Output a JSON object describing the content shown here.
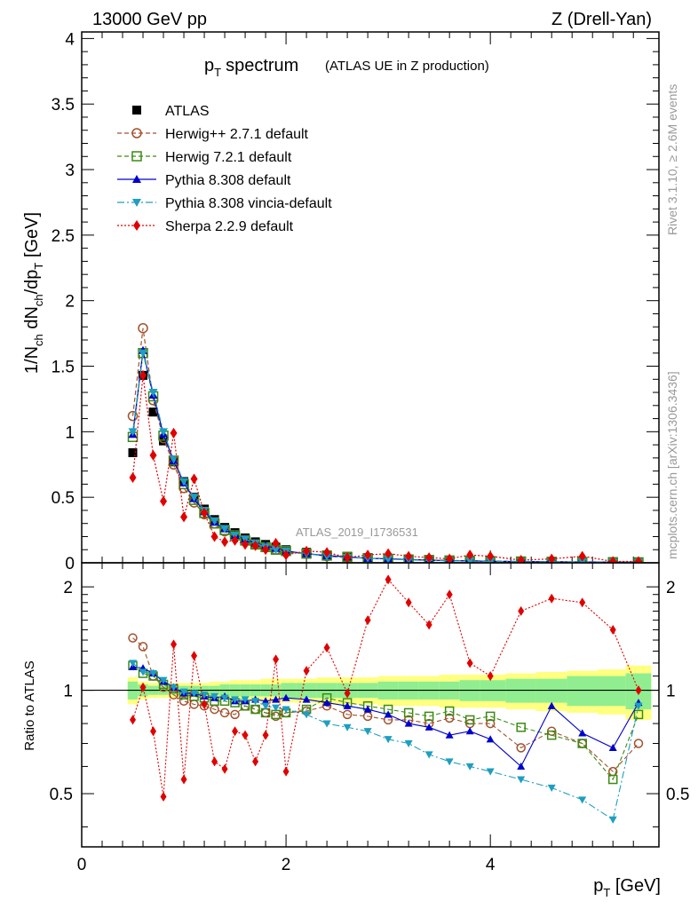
{
  "header": {
    "left": "13000 GeV pp",
    "right": "Z (Drell-Yan)"
  },
  "side_labels": {
    "right_top": "Rivet 3.1.10, ≥ 2.6M events",
    "right_bottom": "mcplots.cern.ch [arXiv:1306.3436]"
  },
  "watermark": "ATLAS_2019_I1736531",
  "colors": {
    "atlas": "#000000",
    "herwigpp": "#a0522d",
    "herwig7": "#3c8a14",
    "pythia": "#0000cc",
    "vincia": "#1e9ec0",
    "sherpa": "#e00000",
    "band_inner": "#90ee90",
    "band_outer": "#ffff80"
  },
  "chart_data": [
    {
      "type": "scatter",
      "panel": "main",
      "title_main": "p",
      "title_sub": "T",
      "title_word": "spectrum",
      "title_extra": "(ATLAS UE in Z production)",
      "ylabel": "1/N_ch dN_ch/dp_T [GeV]",
      "xlim": [
        0,
        5.65
      ],
      "ylim": [
        0,
        4.05
      ],
      "yticks": [
        0,
        0.5,
        1,
        1.5,
        2,
        2.5,
        3,
        3.5,
        4
      ],
      "ytick_labels": [
        "0",
        "0.5",
        "1",
        "1.5",
        "2",
        "2.5",
        "3",
        "3.5",
        "4"
      ],
      "legend": [
        "ATLAS",
        "Herwig++ 2.7.1 default",
        "Herwig 7.2.1 default",
        "Pythia 8.308 default",
        "Pythia 8.308 vincia-default",
        "Sherpa 2.2.9 default"
      ],
      "x": [
        0.5,
        0.6,
        0.7,
        0.8,
        0.9,
        1.0,
        1.1,
        1.2,
        1.3,
        1.4,
        1.5,
        1.6,
        1.7,
        1.8,
        1.9,
        2.0,
        2.2,
        2.4,
        2.6,
        2.8,
        3.0,
        3.2,
        3.4,
        3.6,
        3.8,
        4.0,
        4.3,
        4.6,
        4.9,
        5.2,
        5.45
      ],
      "series": [
        {
          "name": "ATLAS",
          "values": [
            0.84,
            1.43,
            1.15,
            0.93,
            0.77,
            0.62,
            0.5,
            0.41,
            0.33,
            0.27,
            0.23,
            0.19,
            0.16,
            0.14,
            0.12,
            0.1,
            0.08,
            0.06,
            0.05,
            0.04,
            0.035,
            0.03,
            0.025,
            0.02,
            0.018,
            0.015,
            0.012,
            0.01,
            0.008,
            0.006,
            0.005
          ]
        },
        {
          "name": "Herwig++ 2.7.1 default",
          "values": [
            1.12,
            1.79,
            1.24,
            0.95,
            0.75,
            0.57,
            0.46,
            0.37,
            0.3,
            0.24,
            0.2,
            0.17,
            0.14,
            0.12,
            0.1,
            0.08,
            0.07,
            0.05,
            0.04,
            0.035,
            0.03,
            0.025,
            0.02,
            0.017,
            0.015,
            0.012,
            0.01,
            0.008,
            0.006,
            0.005,
            0.004
          ]
        },
        {
          "name": "Herwig 7.2.1 default",
          "values": [
            0.96,
            1.6,
            1.27,
            0.97,
            0.78,
            0.6,
            0.48,
            0.38,
            0.3,
            0.25,
            0.21,
            0.17,
            0.14,
            0.12,
            0.1,
            0.09,
            0.07,
            0.055,
            0.045,
            0.035,
            0.03,
            0.025,
            0.021,
            0.018,
            0.016,
            0.013,
            0.01,
            0.008,
            0.006,
            0.005,
            0.004
          ]
        },
        {
          "name": "Pythia 8.308 default",
          "values": [
            0.98,
            1.62,
            1.28,
            0.98,
            0.78,
            0.61,
            0.49,
            0.39,
            0.31,
            0.26,
            0.21,
            0.18,
            0.15,
            0.13,
            0.11,
            0.09,
            0.07,
            0.055,
            0.045,
            0.035,
            0.03,
            0.025,
            0.02,
            0.016,
            0.014,
            0.011,
            0.009,
            0.008,
            0.006,
            0.005,
            0.004
          ]
        },
        {
          "name": "Pythia 8.308 vincia-default",
          "values": [
            1.0,
            1.6,
            1.3,
            1.0,
            0.79,
            0.62,
            0.5,
            0.4,
            0.32,
            0.26,
            0.21,
            0.18,
            0.15,
            0.12,
            0.1,
            0.09,
            0.07,
            0.05,
            0.04,
            0.035,
            0.028,
            0.022,
            0.018,
            0.015,
            0.013,
            0.01,
            0.008,
            0.007,
            0.005,
            0.004,
            0.004
          ]
        },
        {
          "name": "Sherpa 2.2.9 default",
          "values": [
            0.65,
            1.43,
            0.82,
            0.47,
            0.99,
            0.35,
            0.64,
            0.38,
            0.2,
            0.16,
            0.17,
            0.14,
            0.13,
            0.1,
            0.15,
            0.06,
            0.09,
            0.08,
            0.04,
            0.06,
            0.07,
            0.05,
            0.04,
            0.03,
            0.06,
            0.05,
            0.02,
            0.03,
            0.05,
            0.01,
            0.01
          ]
        }
      ]
    },
    {
      "type": "scatter",
      "panel": "ratio",
      "ylabel": "Ratio to ATLAS",
      "xlabel": "p_T [GeV]",
      "xlim": [
        0,
        5.65
      ],
      "ylim": [
        0.35,
        2.35
      ],
      "xticks": [
        0,
        2,
        4
      ],
      "xtick_labels": [
        "0",
        "2",
        "4"
      ],
      "yticks": [
        0.5,
        1,
        2
      ],
      "ytick_labels": [
        "0.5",
        "1",
        "2"
      ],
      "reference": 1.0,
      "x": [
        0.5,
        0.6,
        0.7,
        0.8,
        0.9,
        1.0,
        1.1,
        1.2,
        1.3,
        1.4,
        1.5,
        1.6,
        1.7,
        1.8,
        1.9,
        2.0,
        2.2,
        2.4,
        2.6,
        2.8,
        3.0,
        3.2,
        3.4,
        3.6,
        3.8,
        4.0,
        4.3,
        4.6,
        4.9,
        5.2,
        5.45
      ],
      "band_inner": [
        0.06,
        0.04,
        0.03,
        0.03,
        0.03,
        0.03,
        0.03,
        0.03,
        0.03,
        0.04,
        0.04,
        0.04,
        0.04,
        0.04,
        0.04,
        0.05,
        0.05,
        0.05,
        0.05,
        0.05,
        0.06,
        0.06,
        0.06,
        0.06,
        0.07,
        0.07,
        0.08,
        0.08,
        0.1,
        0.1,
        0.12
      ],
      "band_outer": [
        0.09,
        0.06,
        0.05,
        0.05,
        0.05,
        0.05,
        0.05,
        0.05,
        0.06,
        0.06,
        0.07,
        0.07,
        0.07,
        0.08,
        0.08,
        0.08,
        0.08,
        0.09,
        0.09,
        0.09,
        0.1,
        0.1,
        0.1,
        0.11,
        0.11,
        0.11,
        0.12,
        0.13,
        0.14,
        0.15,
        0.18
      ],
      "series": [
        {
          "name": "Herwig++ 2.7.1 default",
          "values": [
            1.42,
            1.34,
            1.1,
            1.02,
            0.97,
            0.93,
            0.91,
            0.9,
            0.88,
            0.86,
            0.85,
            0.9,
            0.88,
            0.86,
            0.84,
            0.86,
            0.87,
            0.9,
            0.85,
            0.84,
            0.82,
            0.82,
            0.8,
            0.83,
            0.8,
            0.8,
            0.68,
            0.76,
            0.7,
            0.58,
            0.7
          ]
        },
        {
          "name": "Herwig 7.2.1 default",
          "values": [
            1.18,
            1.12,
            1.1,
            1.04,
            1.01,
            0.97,
            0.96,
            0.95,
            0.93,
            0.93,
            0.92,
            0.9,
            0.88,
            0.86,
            0.85,
            0.86,
            0.88,
            0.95,
            0.92,
            0.9,
            0.88,
            0.86,
            0.84,
            0.87,
            0.82,
            0.84,
            0.78,
            0.74,
            0.7,
            0.55,
            0.85
          ]
        },
        {
          "name": "Pythia 8.308 default",
          "values": [
            1.17,
            1.16,
            1.12,
            1.06,
            1.02,
            0.98,
            0.98,
            0.96,
            0.95,
            0.96,
            0.93,
            0.93,
            0.94,
            0.93,
            0.94,
            0.95,
            0.94,
            0.92,
            0.9,
            0.88,
            0.85,
            0.8,
            0.78,
            0.74,
            0.76,
            0.72,
            0.6,
            0.9,
            0.75,
            0.68,
            0.92
          ]
        },
        {
          "name": "Pythia 8.308 vincia-default",
          "values": [
            1.2,
            1.13,
            1.12,
            1.07,
            1.02,
            0.99,
            0.98,
            0.97,
            0.96,
            0.95,
            0.94,
            0.94,
            0.93,
            0.9,
            0.89,
            0.88,
            0.85,
            0.8,
            0.78,
            0.76,
            0.72,
            0.7,
            0.65,
            0.62,
            0.6,
            0.58,
            0.55,
            0.52,
            0.48,
            0.42,
            0.9
          ]
        },
        {
          "name": "Sherpa 2.2.9 default",
          "values": [
            0.82,
            1.02,
            0.76,
            0.49,
            1.36,
            0.55,
            1.26,
            0.91,
            0.62,
            0.59,
            0.76,
            0.74,
            0.62,
            0.74,
            1.23,
            0.58,
            1.14,
            1.33,
            0.98,
            1.6,
            2.1,
            1.8,
            1.55,
            1.9,
            1.2,
            1.1,
            1.7,
            1.85,
            1.8,
            1.5,
            1.0
          ]
        }
      ]
    }
  ]
}
